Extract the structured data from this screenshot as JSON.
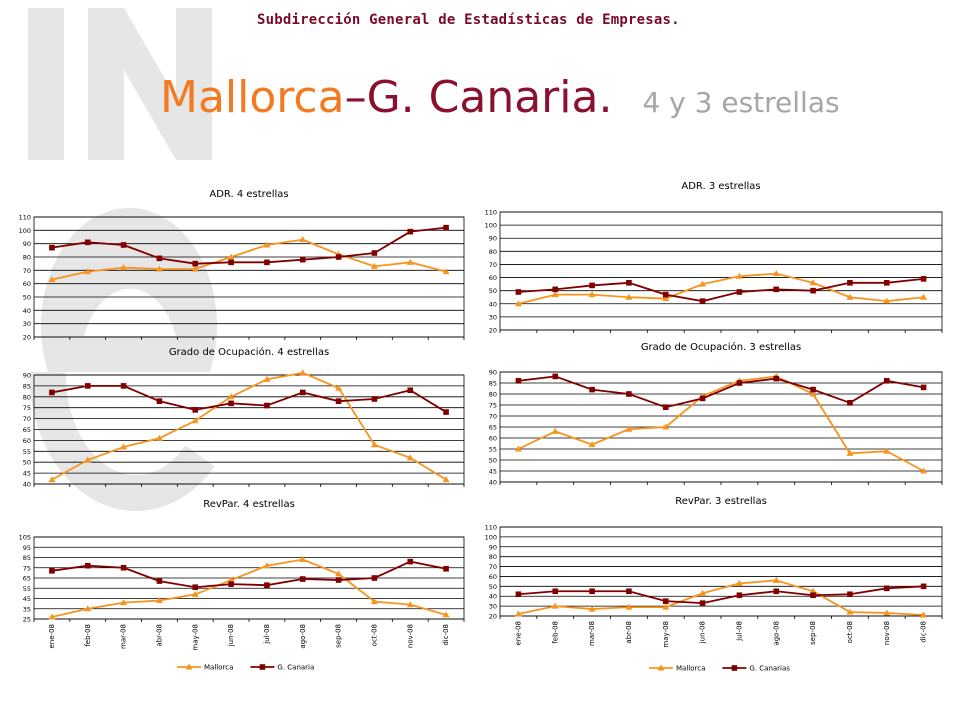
{
  "header": {
    "org": "Subdirección General de Estadísticas de Empresas.",
    "title_a": "Mallorca",
    "title_sep": "–",
    "title_b": "G. Canaria.",
    "subtitle": "4 y 3 estrellas"
  },
  "colors": {
    "mallorca": "#f7941d",
    "canaria": "#800000",
    "grid": "#000000",
    "title_orange": "#f47920",
    "title_maroon": "#8b1030",
    "subtitle_gray": "#a6a6a6",
    "watermark": "#e6e6e6"
  },
  "chart_data": [
    {
      "type": "line",
      "title": "ADR. 4 estrellas",
      "categories": [
        "ene-08",
        "feb-08",
        "mar-08",
        "abr-08",
        "may-08",
        "jun-08",
        "jul-08",
        "ago-08",
        "sep-08",
        "oct-08",
        "nov-08",
        "dic-08"
      ],
      "show_x_labels": false,
      "show_legend": false,
      "y_ticks": [
        "20",
        "30",
        "40",
        "50",
        "60",
        "70",
        "80",
        "90",
        "100",
        "110"
      ],
      "ylim": [
        20,
        110
      ],
      "grid": true,
      "series": [
        {
          "name": "Mallorca",
          "marker": "triangle",
          "values": [
            63,
            69,
            72,
            71,
            71,
            80,
            89,
            93,
            82,
            73,
            76,
            69
          ]
        },
        {
          "name": "G. Canaria",
          "marker": "square",
          "values": [
            87,
            91,
            89,
            79,
            75,
            76,
            76,
            78,
            80,
            83,
            99,
            102
          ]
        }
      ]
    },
    {
      "type": "line",
      "title": "ADR. 3 estrellas",
      "categories": [
        "ene-08",
        "feb-08",
        "mar-08",
        "abr-08",
        "may-08",
        "jun-08",
        "jul-08",
        "ago-08",
        "sep-08",
        "oct-08",
        "nov-08",
        "dic-08"
      ],
      "show_x_labels": false,
      "show_legend": false,
      "y_ticks": [
        "20",
        "30",
        "40",
        "50",
        "60",
        "70",
        "80",
        "90",
        "100",
        "110"
      ],
      "ylim": [
        20,
        110
      ],
      "grid": true,
      "series": [
        {
          "name": "Mallorca",
          "marker": "triangle",
          "values": [
            40,
            47,
            47,
            45,
            44,
            55,
            61,
            63,
            56,
            45,
            42,
            45
          ]
        },
        {
          "name": "G. Canarias",
          "marker": "square",
          "values": [
            49,
            51,
            54,
            56,
            47,
            42,
            49,
            51,
            50,
            56,
            56,
            59
          ]
        }
      ]
    },
    {
      "type": "line",
      "title": "Grado de Ocupación. 4 estrellas",
      "categories": [
        "ene-08",
        "feb-08",
        "mar-08",
        "abr-08",
        "may-08",
        "jun-08",
        "jul-08",
        "ago-08",
        "sep-08",
        "oct-08",
        "nov-08",
        "dic-08"
      ],
      "show_x_labels": false,
      "show_legend": false,
      "y_ticks": [
        "40",
        "45",
        "50",
        "55",
        "60",
        "65",
        "70",
        "75",
        "80",
        "85",
        "90"
      ],
      "ylim": [
        40,
        90
      ],
      "grid": true,
      "series": [
        {
          "name": "Mallorca",
          "marker": "triangle",
          "values": [
            42,
            51,
            57,
            61,
            69,
            80,
            88,
            91,
            84,
            58,
            52,
            42
          ]
        },
        {
          "name": "G. Canaria",
          "marker": "square",
          "values": [
            82,
            85,
            85,
            78,
            74,
            77,
            76,
            82,
            78,
            79,
            83,
            73
          ]
        }
      ]
    },
    {
      "type": "line",
      "title": "Grado de Ocupación. 3 estrellas",
      "categories": [
        "ene-08",
        "feb-08",
        "mar-08",
        "abr-08",
        "may-08",
        "jun-08",
        "jul-08",
        "ago-08",
        "sep-08",
        "oct-08",
        "nov-08",
        "dic-08"
      ],
      "show_x_labels": false,
      "show_legend": false,
      "y_ticks": [
        "40",
        "45",
        "50",
        "55",
        "60",
        "65",
        "70",
        "75",
        "80",
        "85",
        "90"
      ],
      "ylim": [
        40,
        90
      ],
      "grid": true,
      "series": [
        {
          "name": "Mallorca",
          "marker": "triangle",
          "values": [
            55,
            63,
            57,
            64,
            65,
            79,
            86,
            88,
            80,
            53,
            54,
            45
          ]
        },
        {
          "name": "G. Canarias",
          "marker": "square",
          "values": [
            86,
            88,
            82,
            80,
            74,
            78,
            85,
            87,
            82,
            76,
            86,
            83
          ]
        }
      ]
    },
    {
      "type": "line",
      "title": "RevPar. 4 estrellas",
      "categories": [
        "ene-08",
        "feb-08",
        "mar-08",
        "abr-08",
        "may-08",
        "jun-08",
        "jul-08",
        "ago-08",
        "sep-08",
        "oct-08",
        "nov-08",
        "dic-08"
      ],
      "show_x_labels": true,
      "show_legend": true,
      "y_ticks": [
        "25",
        "35",
        "45",
        "55",
        "65",
        "75",
        "85",
        "95",
        "105"
      ],
      "ylim": [
        25,
        105
      ],
      "grid": true,
      "series": [
        {
          "name": "Mallorca",
          "marker": "triangle",
          "values": [
            27,
            35,
            41,
            43,
            49,
            63,
            77,
            83,
            69,
            42,
            39,
            29
          ]
        },
        {
          "name": "G. Canaria",
          "marker": "square",
          "values": [
            72,
            77,
            75,
            62,
            56,
            59,
            58,
            64,
            63,
            65,
            81,
            74
          ]
        }
      ]
    },
    {
      "type": "line",
      "title": "RevPar. 3 estrellas",
      "categories": [
        "ene-08",
        "feb-08",
        "mar-08",
        "abr-08",
        "may-08",
        "jun-08",
        "jul-08",
        "ago-08",
        "sep-08",
        "oct-08",
        "nov-08",
        "dic-08"
      ],
      "show_x_labels": true,
      "show_legend": true,
      "y_ticks": [
        "20",
        "30",
        "40",
        "50",
        "60",
        "70",
        "80",
        "90",
        "100",
        "110"
      ],
      "ylim": [
        20,
        110
      ],
      "grid": true,
      "series": [
        {
          "name": "Mallorca",
          "marker": "triangle",
          "values": [
            22,
            30,
            27,
            29,
            29,
            43,
            53,
            56,
            45,
            24,
            23,
            21
          ]
        },
        {
          "name": "G. Canarias",
          "marker": "square",
          "values": [
            42,
            45,
            45,
            45,
            35,
            33,
            41,
            45,
            41,
            42,
            48,
            50
          ]
        }
      ]
    }
  ]
}
